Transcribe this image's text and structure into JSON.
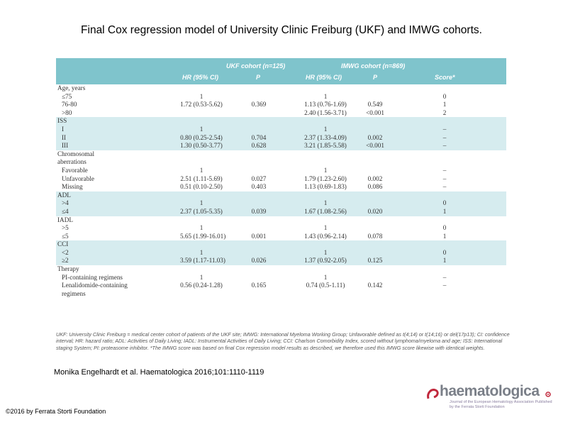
{
  "title": "Final Cox regression model of University Clinic Freiburg (UKF) and IMWG cohorts.",
  "header": {
    "ukf_group": "UKF cohort (n=125)",
    "imwg_group": "IMWG cohort (n=869)",
    "hr1": "HR (95% CI)",
    "p1": "P",
    "hr2": "HR (95% CI)",
    "p2": "P",
    "score": "Score*"
  },
  "groups": [
    {
      "shade": false,
      "rows": [
        {
          "label": "Age, years",
          "indent": false,
          "ukf_hr": "",
          "ukf_p": "",
          "imwg_hr": "",
          "imwg_p": "",
          "score": ""
        },
        {
          "label": "≤75",
          "indent": true,
          "ukf_hr": "1",
          "ukf_p": "",
          "imwg_hr": "1",
          "imwg_p": "",
          "score": "0"
        },
        {
          "label": "76-80",
          "indent": true,
          "ukf_hr": "1.72 (0.53-5.62)",
          "ukf_p": "0.369",
          "imwg_hr": "1.13 (0.76-1.69)",
          "imwg_p": "0.549",
          "score": "1"
        },
        {
          "label": ">80",
          "indent": true,
          "ukf_hr": "",
          "ukf_p": "",
          "imwg_hr": "2.40 (1.56-3.71)",
          "imwg_p": "<0.001",
          "score": "2"
        }
      ]
    },
    {
      "shade": true,
      "rows": [
        {
          "label": "ISS",
          "indent": false,
          "ukf_hr": "",
          "ukf_p": "",
          "imwg_hr": "",
          "imwg_p": "",
          "score": ""
        },
        {
          "label": "I",
          "indent": true,
          "ukf_hr": "1",
          "ukf_p": "",
          "imwg_hr": "1",
          "imwg_p": "",
          "score": "–"
        },
        {
          "label": "II",
          "indent": true,
          "ukf_hr": "0.80 (0.25-2.54)",
          "ukf_p": "0.704",
          "imwg_hr": "2.37 (1.33-4.09)",
          "imwg_p": "0.002",
          "score": "–"
        },
        {
          "label": "III",
          "indent": true,
          "ukf_hr": "1.30 (0.50-3.77)",
          "ukf_p": "0.628",
          "imwg_hr": "3.21 (1.85-5.58)",
          "imwg_p": "<0.001",
          "score": "–"
        }
      ]
    },
    {
      "shade": false,
      "rows": [
        {
          "label": "Chromosomal",
          "indent": false,
          "ukf_hr": "",
          "ukf_p": "",
          "imwg_hr": "",
          "imwg_p": "",
          "score": ""
        },
        {
          "label": "aberrations",
          "indent": false,
          "ukf_hr": "",
          "ukf_p": "",
          "imwg_hr": "",
          "imwg_p": "",
          "score": ""
        },
        {
          "label": "Favorable",
          "indent": true,
          "ukf_hr": "1",
          "ukf_p": "",
          "imwg_hr": "1",
          "imwg_p": "",
          "score": "–"
        },
        {
          "label": "Unfavorable",
          "indent": true,
          "ukf_hr": "2.51 (1.11-5.69)",
          "ukf_p": "0.027",
          "imwg_hr": "1.79 (1.23-2.60)",
          "imwg_p": "0.002",
          "score": "–"
        },
        {
          "label": "Missing",
          "indent": true,
          "ukf_hr": "0.51 (0.10-2.50)",
          "ukf_p": "0.403",
          "imwg_hr": "1.13 (0.69-1.83)",
          "imwg_p": "0.086",
          "score": "–"
        }
      ]
    },
    {
      "shade": true,
      "rows": [
        {
          "label": "ADL",
          "indent": false,
          "ukf_hr": "",
          "ukf_p": "",
          "imwg_hr": "",
          "imwg_p": "",
          "score": ""
        },
        {
          "label": ">4",
          "indent": true,
          "ukf_hr": "1",
          "ukf_p": "",
          "imwg_hr": "1",
          "imwg_p": "",
          "score": "0"
        },
        {
          "label": "≤4",
          "indent": true,
          "ukf_hr": "2.37 (1.05-5.35)",
          "ukf_p": "0.039",
          "imwg_hr": "1.67 (1.08-2.56)",
          "imwg_p": "0.020",
          "score": "1"
        }
      ]
    },
    {
      "shade": false,
      "rows": [
        {
          "label": "IADL",
          "indent": false,
          "ukf_hr": "",
          "ukf_p": "",
          "imwg_hr": "",
          "imwg_p": "",
          "score": ""
        },
        {
          "label": ">5",
          "indent": true,
          "ukf_hr": "1",
          "ukf_p": "",
          "imwg_hr": "1",
          "imwg_p": "",
          "score": "0"
        },
        {
          "label": "≤5",
          "indent": true,
          "ukf_hr": "5.65 (1.99-16.01)",
          "ukf_p": "0.001",
          "imwg_hr": "1.43 (0.96-2.14)",
          "imwg_p": "0.078",
          "score": "1"
        }
      ]
    },
    {
      "shade": true,
      "rows": [
        {
          "label": "CCI",
          "indent": false,
          "ukf_hr": "",
          "ukf_p": "",
          "imwg_hr": "",
          "imwg_p": "",
          "score": ""
        },
        {
          "label": "<2",
          "indent": true,
          "ukf_hr": "1",
          "ukf_p": "",
          "imwg_hr": "1",
          "imwg_p": "",
          "score": "0"
        },
        {
          "label": "≥2",
          "indent": true,
          "ukf_hr": "3.59 (1.17-11.03)",
          "ukf_p": "0.026",
          "imwg_hr": "1.37 (0.92-2.05)",
          "imwg_p": "0.125",
          "score": "1"
        }
      ]
    },
    {
      "shade": false,
      "rows": [
        {
          "label": "Therapy",
          "indent": false,
          "ukf_hr": "",
          "ukf_p": "",
          "imwg_hr": "",
          "imwg_p": "",
          "score": ""
        },
        {
          "label": "PI-containing regimens",
          "indent": true,
          "ukf_hr": "1",
          "ukf_p": "",
          "imwg_hr": "1",
          "imwg_p": "",
          "score": "–"
        },
        {
          "label": "Lenalidomide-containing",
          "indent": true,
          "ukf_hr": "0.56 (0.24-1.28)",
          "ukf_p": "0.165",
          "imwg_hr": "0.74 (0.5-1.11)",
          "imwg_p": "0.142",
          "score": "–"
        },
        {
          "label": "regimens",
          "indent": true,
          "ukf_hr": "",
          "ukf_p": "",
          "imwg_hr": "",
          "imwg_p": "",
          "score": ""
        }
      ]
    }
  ],
  "footnote": "UKF: University Clinic Freiburg = medical center cohort of patients of the UKF site; IMWG: International Myeloma Working Group; Unfavorable defined as t(4;14) or t(14;16) or del(17p13); CI: confidence interval; HR: hazard ratio; ADL: Activities of Daily Living; IADL: Instrumental Activities of Daily Living; CCI: Charlson Comorbidity Index, scored without lymphoma/myeloma and age; ISS: International staging System; PI: proteasome inhibitor. *The IMWG score was based on final Cox regression model results as described, we therefore used this IMWG score likewise with identical weights.",
  "citation": "Monika Engelhardt et al. Haematologica 2016;101:1110-1119",
  "copyright": "©2016 by Ferrata Storti Foundation",
  "logo": {
    "name": "haematologica",
    "subtitle": "Journal of the European Hematology Association Published by the Ferrata Storti Foundation"
  }
}
